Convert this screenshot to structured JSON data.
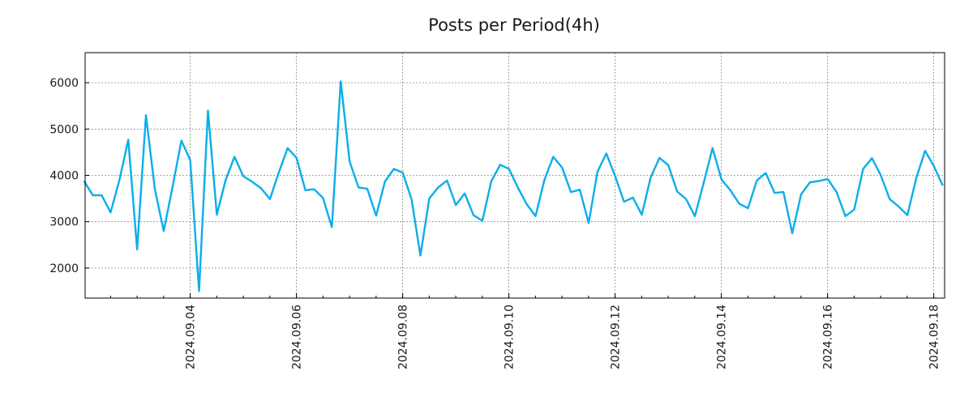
{
  "chart_data": {
    "type": "line",
    "title": "Posts per Period(4h)",
    "xlabel": "",
    "ylabel": "",
    "line_color": "#0aaeea",
    "ylim": [
      1350,
      6650
    ],
    "xlim_days": [
      0,
      16.0
    ],
    "y_ticks": [
      2000,
      3000,
      4000,
      5000,
      6000
    ],
    "x_ticks": [
      {
        "day": 2,
        "label": "2024.09.04"
      },
      {
        "day": 4,
        "label": "2024.09.06"
      },
      {
        "day": 6,
        "label": "2024.09.08"
      },
      {
        "day": 8,
        "label": "2024.09.10"
      },
      {
        "day": 10,
        "label": "2024.09.12"
      },
      {
        "day": 12,
        "label": "2024.09.14"
      },
      {
        "day": 14,
        "label": "2024.09.16"
      },
      {
        "day": 16,
        "label": "2024.09.18"
      }
    ],
    "x_step_days": 0.1667,
    "values": [
      3880,
      3570,
      3570,
      3200,
      3900,
      4770,
      2400,
      5300,
      3700,
      2800,
      3750,
      4750,
      4330,
      1500,
      5400,
      3150,
      3900,
      4400,
      3980,
      3860,
      3720,
      3490,
      4060,
      4590,
      4380,
      3680,
      3700,
      3510,
      2880,
      6030,
      4300,
      3740,
      3710,
      3130,
      3870,
      4140,
      4060,
      3480,
      2270,
      3500,
      3740,
      3890,
      3360,
      3610,
      3140,
      3020,
      3870,
      4230,
      4140,
      3740,
      3380,
      3120,
      3900,
      4400,
      4170,
      3640,
      3690,
      2970,
      4080,
      4470,
      3980,
      3430,
      3520,
      3150,
      3950,
      4380,
      4220,
      3650,
      3490,
      3120,
      3840,
      4590,
      3910,
      3680,
      3390,
      3290,
      3890,
      4050,
      3620,
      3640,
      2750,
      3590,
      3850,
      3880,
      3920,
      3640,
      3120,
      3260,
      4140,
      4370,
      4000,
      3490,
      3330,
      3140,
      3940,
      4530,
      4200,
      3780
    ]
  }
}
